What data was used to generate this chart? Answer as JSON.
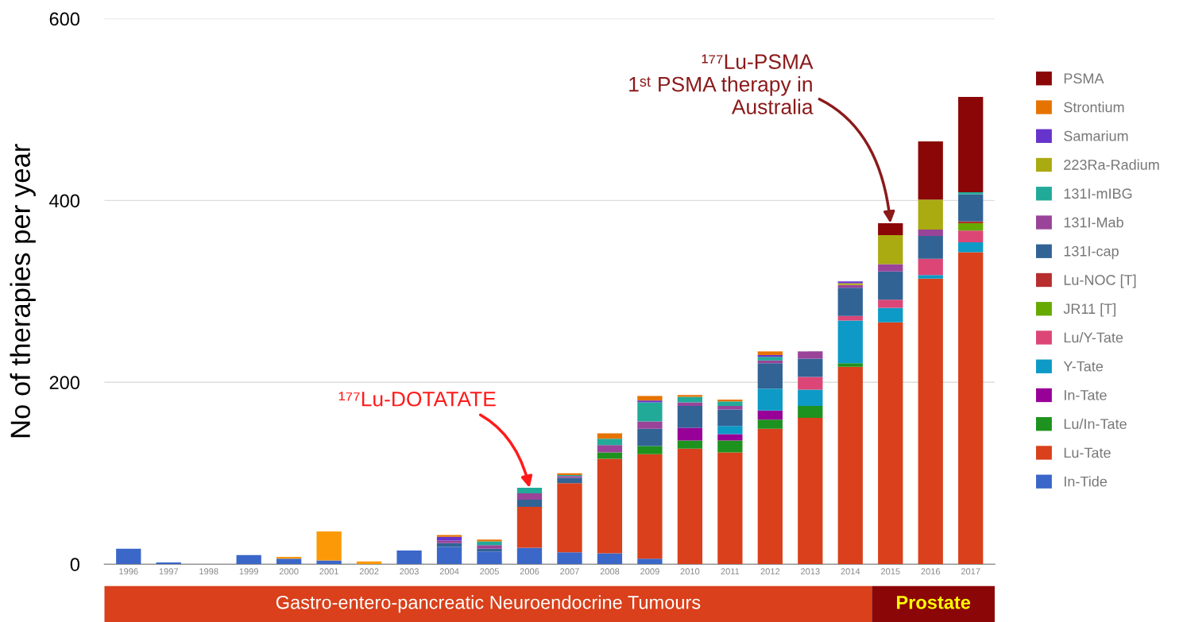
{
  "chart_data": {
    "type": "bar",
    "stacked": true,
    "ylabel": "No of therapies per year",
    "categories": [
      "1996",
      "1997",
      "1998",
      "1999",
      "2000",
      "2001",
      "2002",
      "2003",
      "2004",
      "2005",
      "2006",
      "2007",
      "2008",
      "2009",
      "2010",
      "2011",
      "2012",
      "2013",
      "2014",
      "2015",
      "2016",
      "2017"
    ],
    "series": [
      {
        "name": "In-Tide",
        "color": "#3b67c9",
        "values": [
          17,
          2,
          0,
          10,
          6,
          4,
          0,
          15,
          19,
          14,
          18,
          13,
          12,
          6,
          0,
          0,
          0,
          0,
          0,
          0,
          0,
          0
        ]
      },
      {
        "name": "Lu-Tate",
        "color": "#d9401b",
        "values": [
          0,
          0,
          0,
          0,
          0,
          0,
          0,
          0,
          0,
          0,
          45,
          76,
          104,
          115,
          127,
          123,
          149,
          161,
          217,
          266,
          314,
          343
        ]
      },
      {
        "color": "#fb9a06",
        "values": [
          0,
          0,
          0,
          0,
          2,
          32,
          3,
          0,
          0,
          0,
          0,
          0,
          0,
          0,
          0,
          0,
          0,
          0,
          0,
          0,
          0,
          0
        ]
      },
      {
        "name": "Lu/In-Tate",
        "color": "#1e921e",
        "values": [
          0,
          0,
          0,
          0,
          0,
          0,
          0,
          0,
          0,
          0,
          0,
          0,
          7,
          9,
          9,
          13,
          10,
          13,
          4,
          0,
          0,
          0
        ]
      },
      {
        "name": "In-Tate",
        "color": "#980198",
        "values": [
          0,
          0,
          0,
          0,
          0,
          0,
          0,
          0,
          0,
          0,
          0,
          0,
          0,
          0,
          14,
          7,
          10,
          0,
          0,
          0,
          0,
          0
        ]
      },
      {
        "name": "Y-Tate",
        "color": "#0d9ac6",
        "values": [
          0,
          0,
          0,
          0,
          0,
          0,
          0,
          0,
          0,
          0,
          0,
          0,
          0,
          0,
          0,
          9,
          24,
          18,
          47,
          16,
          4,
          11
        ]
      },
      {
        "name": "Lu/Y-Tate",
        "color": "#dc4677",
        "values": [
          0,
          0,
          0,
          0,
          0,
          0,
          0,
          0,
          0,
          0,
          0,
          0,
          0,
          0,
          0,
          0,
          0,
          14,
          5,
          9,
          18,
          13
        ]
      },
      {
        "name": "JR11 [T]",
        "color": "#66aa00",
        "values": [
          0,
          0,
          0,
          0,
          0,
          0,
          0,
          0,
          0,
          0,
          0,
          0,
          0,
          0,
          0,
          0,
          0,
          0,
          0,
          0,
          0,
          8
        ]
      },
      {
        "name": "Lu-NOC [T]",
        "color": "#b82e2e",
        "values": [
          0,
          0,
          0,
          0,
          0,
          0,
          0,
          0,
          0,
          0,
          0,
          0,
          0,
          0,
          0,
          0,
          0,
          0,
          0,
          0,
          0,
          2
        ]
      },
      {
        "name": "131I-cap",
        "color": "#316395",
        "values": [
          0,
          0,
          0,
          0,
          0,
          0,
          0,
          0,
          4,
          3,
          8,
          6,
          0,
          19,
          24,
          18,
          28,
          20,
          31,
          31,
          25,
          30
        ]
      },
      {
        "name": "131I-Mab",
        "color": "#994499",
        "values": [
          0,
          0,
          0,
          0,
          0,
          0,
          0,
          0,
          3,
          4,
          7,
          2,
          8,
          8,
          4,
          4,
          3,
          8,
          3,
          8,
          7,
          0
        ]
      },
      {
        "name": "131I-mIBG",
        "color": "#22aa99",
        "values": [
          0,
          0,
          0,
          0,
          0,
          0,
          0,
          0,
          0,
          4,
          6,
          1,
          7,
          21,
          6,
          5,
          4,
          0,
          0,
          0,
          0,
          2
        ]
      },
      {
        "name": "223Ra-Radium",
        "color": "#aaaa11",
        "values": [
          0,
          0,
          0,
          0,
          0,
          0,
          0,
          0,
          0,
          0,
          0,
          0,
          0,
          0,
          0,
          0,
          0,
          0,
          2,
          32,
          33,
          0
        ]
      },
      {
        "name": "Samarium",
        "color": "#6633cc",
        "values": [
          0,
          0,
          0,
          0,
          0,
          0,
          0,
          0,
          4,
          0,
          0,
          0,
          0,
          2,
          0,
          0,
          2,
          0,
          2,
          0,
          0,
          0
        ]
      },
      {
        "name": "Strontium",
        "color": "#e67300",
        "values": [
          0,
          0,
          0,
          0,
          0,
          0,
          0,
          0,
          2,
          2,
          0,
          2,
          6,
          5,
          2,
          2,
          4,
          0,
          0,
          0,
          0,
          0
        ]
      },
      {
        "name": "PSMA",
        "color": "#8b0707",
        "values": [
          0,
          0,
          0,
          0,
          0,
          0,
          0,
          0,
          0,
          0,
          0,
          0,
          0,
          0,
          0,
          0,
          0,
          0,
          0,
          13,
          64,
          105
        ]
      }
    ],
    "ylim": [
      0,
      600
    ],
    "yticks": [
      0,
      200,
      400,
      600
    ],
    "grid": "y",
    "legend": "right",
    "annotations": [
      {
        "text": "¹⁷⁷Lu-DOTATATE",
        "x": "2006",
        "y": 84
      },
      {
        "text": "¹⁷⁷Lu-PSMA\n1ˢᵗ PSMA therapy in\nAustralia",
        "x": "2015",
        "y": 375
      },
      "Gastro-entero-pancreatic Neuroendocrine Tumours",
      "Prostate"
    ]
  }
}
